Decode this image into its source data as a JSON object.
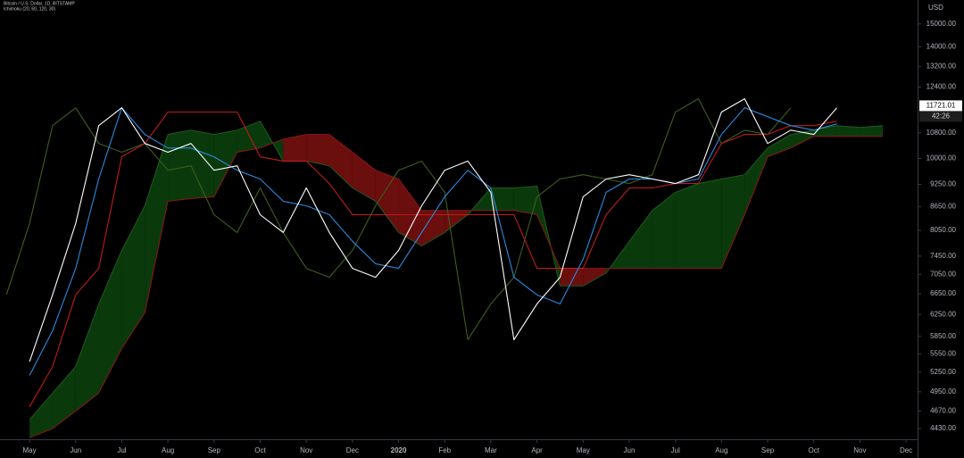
{
  "chart_data": {
    "type": "line",
    "title": "Bitcoin / U.S. Dollar, 1D, BITSTAMP",
    "subtitle": "Ichimoku (20, 60, 120, 30)",
    "y_unit": "USD",
    "log_scale": true,
    "grid": false,
    "background": "#000000",
    "ylim": [
      4290,
      16120
    ],
    "yticks": [
      {
        "value": 15000,
        "label": "15000.00"
      },
      {
        "value": 14000,
        "label": "14000.00"
      },
      {
        "value": 13200,
        "label": "13200.00"
      },
      {
        "value": 12400,
        "label": "12400.00"
      },
      {
        "value": 10800,
        "label": "10800.00"
      },
      {
        "value": 10000,
        "label": "10000.00"
      },
      {
        "value": 9250,
        "label": "9250.00"
      },
      {
        "value": 8650,
        "label": "8650.00"
      },
      {
        "value": 8050,
        "label": "8050.00"
      },
      {
        "value": 7450,
        "label": "7450.00"
      },
      {
        "value": 7050,
        "label": "7050.00"
      },
      {
        "value": 6650,
        "label": "6650.00"
      },
      {
        "value": 6250,
        "label": "6250.00"
      },
      {
        "value": 5850,
        "label": "5850.00"
      },
      {
        "value": 5550,
        "label": "5550.00"
      },
      {
        "value": 5250,
        "label": "5250.00"
      },
      {
        "value": 4950,
        "label": "4950.00"
      },
      {
        "value": 4670,
        "label": "4670.00"
      },
      {
        "value": 4430,
        "label": "4430.00"
      }
    ],
    "xlim": [
      -0.64,
      19.25
    ],
    "xticks": [
      {
        "value": 0,
        "label": "May"
      },
      {
        "value": 1,
        "label": "Jun"
      },
      {
        "value": 2,
        "label": "Jul"
      },
      {
        "value": 3,
        "label": "Aug"
      },
      {
        "value": 4,
        "label": "Sep"
      },
      {
        "value": 5,
        "label": "Oct"
      },
      {
        "value": 6,
        "label": "Nov"
      },
      {
        "value": 7,
        "label": "Dec"
      },
      {
        "value": 8,
        "label": "2020"
      },
      {
        "value": 9,
        "label": "Feb"
      },
      {
        "value": 10,
        "label": "Mar"
      },
      {
        "value": 11,
        "label": "Apr"
      },
      {
        "value": 12,
        "label": "May"
      },
      {
        "value": 13,
        "label": "Jun"
      },
      {
        "value": 14,
        "label": "Jul"
      },
      {
        "value": 15,
        "label": "Aug"
      },
      {
        "value": 16,
        "label": "Sep"
      },
      {
        "value": 17,
        "label": "Oct"
      },
      {
        "value": 18,
        "label": "Nov"
      },
      {
        "value": 19,
        "label": "Dec"
      }
    ],
    "last_price": {
      "value": 11721.01,
      "label": "11721.01"
    },
    "countdown": "42:26",
    "x": [
      0,
      0.5,
      1,
      1.5,
      2,
      2.5,
      3,
      3.5,
      4,
      4.5,
      5,
      5.5,
      6,
      6.5,
      7,
      7.5,
      8,
      8.5,
      9,
      9.5,
      10,
      10.5,
      11,
      11.5,
      12,
      12.5,
      13,
      13.5,
      14,
      14.5,
      15,
      15.5,
      16,
      16.5,
      17,
      17.5
    ],
    "cloud": {
      "x": [
        0,
        0.5,
        1,
        1.5,
        2,
        2.5,
        3,
        3.5,
        4,
        4.5,
        5,
        5.5,
        6,
        6.5,
        7,
        7.5,
        8,
        8.5,
        9,
        9.5,
        10,
        10.5,
        11,
        11.5,
        12,
        12.5,
        13,
        13.5,
        14,
        14.5,
        15,
        15.5,
        16,
        16.5,
        17,
        17.5,
        18,
        18.5
      ],
      "span_a": [
        4550,
        4930,
        5340,
        6450,
        7580,
        8670,
        10750,
        10890,
        10750,
        10890,
        11190,
        9920,
        9920,
        9780,
        9150,
        8790,
        8000,
        7680,
        8000,
        8440,
        9150,
        9150,
        9200,
        6810,
        6810,
        7080,
        7790,
        8550,
        9030,
        9270,
        9400,
        9520,
        10320,
        10750,
        10890,
        11040,
        10980,
        11040
      ],
      "span_b": [
        4310,
        4430,
        4670,
        4930,
        5640,
        6280,
        8790,
        8860,
        8910,
        10190,
        10320,
        10600,
        10750,
        10750,
        10190,
        9650,
        9400,
        8550,
        8550,
        8550,
        8550,
        8550,
        8440,
        7180,
        7180,
        7180,
        7180,
        7180,
        7180,
        7180,
        7180,
        8440,
        10050,
        10320,
        10690,
        10690,
        10690,
        10690
      ],
      "up_color": "#0a3a0c",
      "down_color": "#6a0e0e",
      "a_color": "#1f5a1f",
      "b_color": "#8e1616"
    },
    "series": [
      {
        "color": "#3d5f1c",
        "x": [
          -0.5,
          0,
          0.5,
          1,
          1.5,
          2,
          2.5,
          3,
          3.5,
          4,
          4.5,
          5,
          5.5,
          6,
          6.5,
          7,
          7.5,
          8,
          8.5,
          9,
          9.5,
          10,
          10.5,
          11,
          11.5,
          12,
          12.5,
          13,
          13.5,
          14,
          14.5,
          15,
          15.5,
          16,
          16.5
        ],
        "values": [
          6630,
          8220,
          11040,
          11650,
          10460,
          10190,
          10460,
          9650,
          9780,
          8440,
          8000,
          9150,
          8000,
          7180,
          6990,
          7580,
          8670,
          9650,
          9920,
          9030,
          5790,
          6450,
          6990,
          8910,
          9400,
          9520,
          9400,
          9270,
          9520,
          11500,
          11970,
          10460,
          10890,
          10750,
          11650
        ]
      },
      {
        "color": "#c21a1a",
        "values": [
          4730,
          5340,
          6630,
          7180,
          10050,
          10460,
          11500,
          11500,
          11500,
          11500,
          10050,
          9920,
          9920,
          9270,
          8440,
          8440,
          8440,
          8440,
          8440,
          8440,
          8440,
          8440,
          7180,
          7180,
          7180,
          8440,
          9150,
          9150,
          9270,
          9270,
          10460,
          10750,
          10750,
          11040,
          11040,
          11190
        ]
      },
      {
        "color": "#2a8ae0",
        "values": [
          5200,
          5950,
          7180,
          9400,
          11650,
          10750,
          10320,
          10320,
          10050,
          9650,
          9400,
          8790,
          8670,
          8440,
          7790,
          7280,
          7180,
          8000,
          8910,
          9650,
          9150,
          6990,
          6630,
          6450,
          7380,
          9030,
          9400,
          9400,
          9270,
          9400,
          10750,
          11650,
          11340,
          11040,
          10890,
          11100
        ]
      },
      {
        "color": "#ffffff",
        "values": [
          5420,
          6630,
          8220,
          11040,
          11650,
          10460,
          10190,
          10460,
          9650,
          9780,
          8440,
          8000,
          9150,
          8000,
          7180,
          6990,
          7580,
          8670,
          9650,
          9920,
          9030,
          5790,
          6450,
          6990,
          8910,
          9400,
          9520,
          9400,
          9270,
          9520,
          11500,
          11970,
          10460,
          10890,
          10750,
          11650
        ]
      }
    ]
  }
}
